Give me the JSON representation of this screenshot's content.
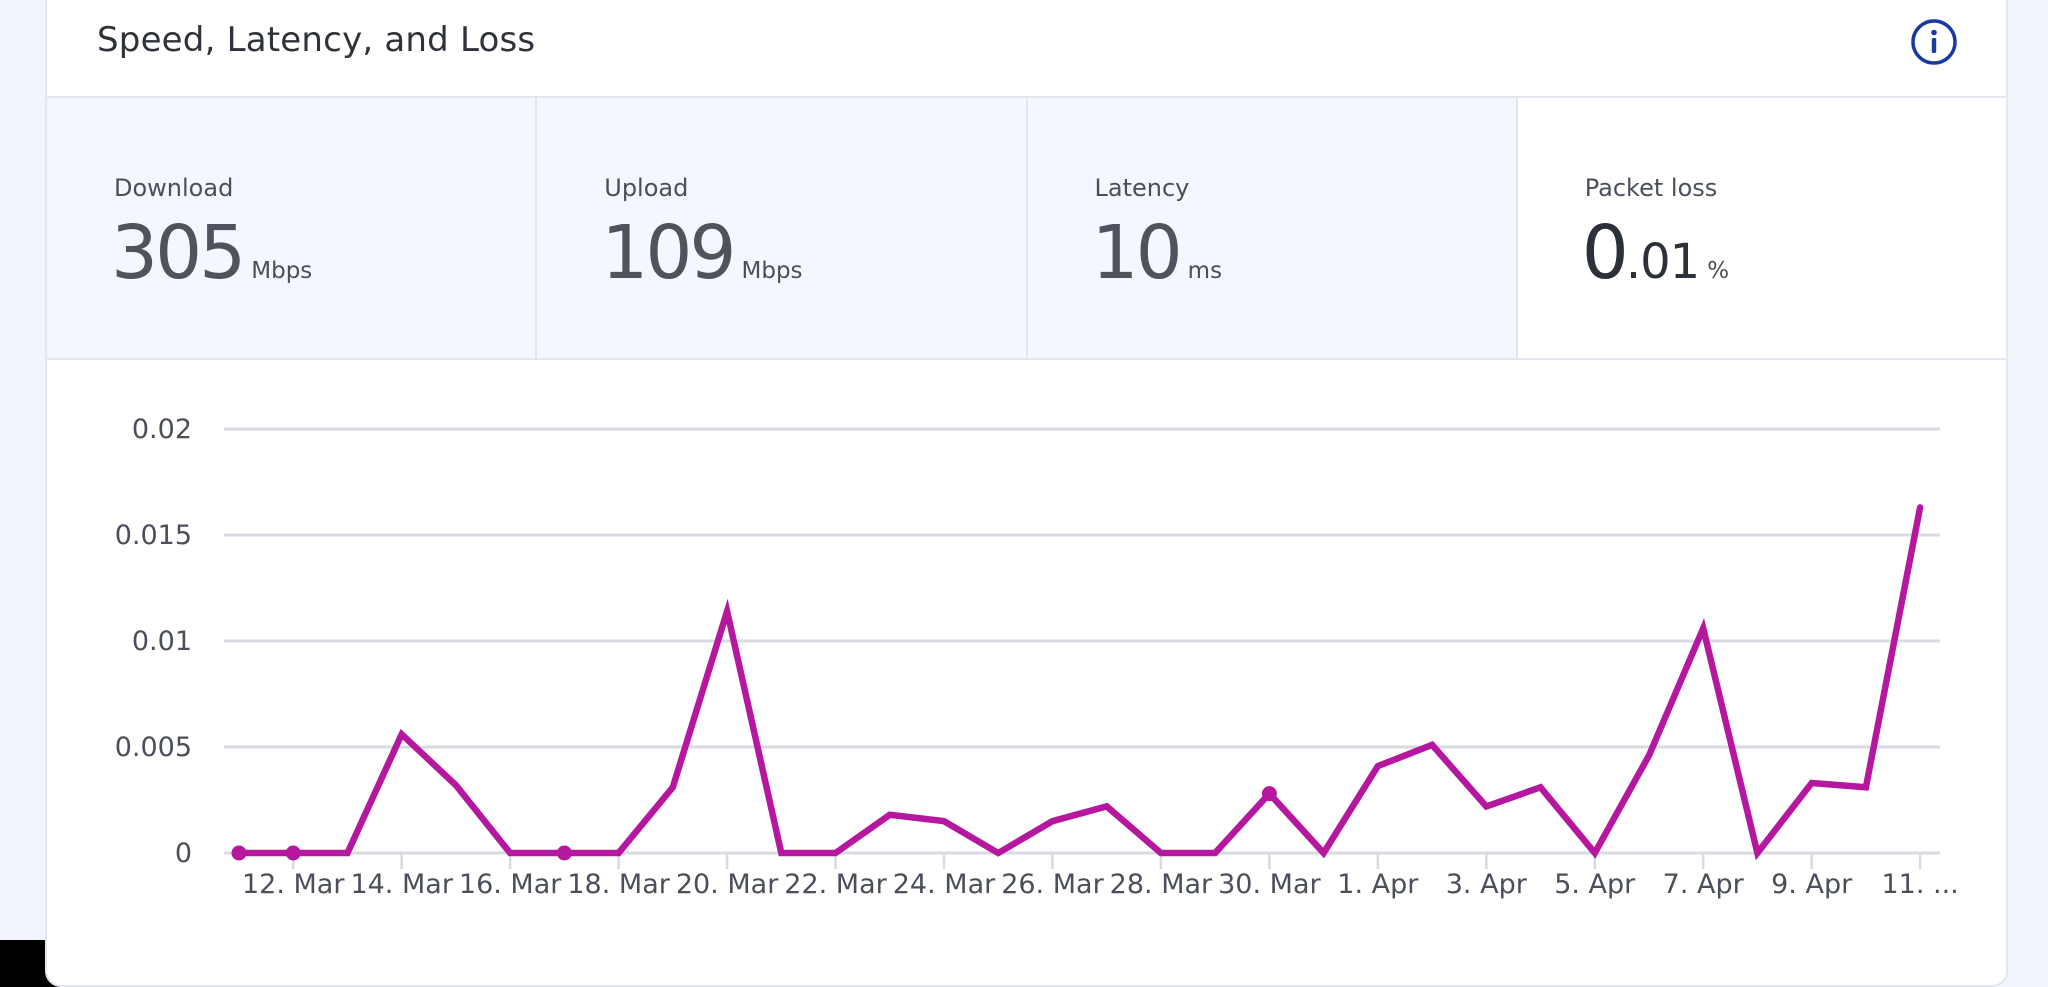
{
  "card": {
    "title": "Speed, Latency, and Loss",
    "info_icon": "info-circle-icon"
  },
  "metrics": [
    {
      "label": "Download",
      "value": "305",
      "decimal": "",
      "unit": "Mbps",
      "active": false
    },
    {
      "label": "Upload",
      "value": "109",
      "decimal": "",
      "unit": "Mbps",
      "active": false
    },
    {
      "label": "Latency",
      "value": "10",
      "decimal": "",
      "unit": "ms",
      "active": false
    },
    {
      "label": "Packet loss",
      "value": "0",
      "decimal": ".01",
      "unit": "%",
      "active": true
    }
  ],
  "colors": {
    "series": "#b5179e",
    "grid": "#d9dae3",
    "info": "#1a3aa3"
  },
  "chart_data": {
    "type": "line",
    "title": "",
    "xlabel": "",
    "ylabel": "",
    "ylim": [
      0,
      0.02
    ],
    "y_ticks": [
      "0",
      "0.005",
      "0.01",
      "0.015",
      "0.02"
    ],
    "y_tick_values": [
      0,
      0.005,
      0.01,
      0.015,
      0.02
    ],
    "x_tick_labels": [
      "12. Mar",
      "14. Mar",
      "16. Mar",
      "18. Mar",
      "20. Mar",
      "22. Mar",
      "24. Mar",
      "26. Mar",
      "28. Mar",
      "30. Mar",
      "1. Apr",
      "3. Apr",
      "5. Apr",
      "7. Apr",
      "9. Apr",
      "11. ..."
    ],
    "x": [
      "11. Mar",
      "12. Mar",
      "13. Mar",
      "14. Mar",
      "15. Mar",
      "16. Mar",
      "17. Mar",
      "18. Mar",
      "19. Mar",
      "20. Mar",
      "21. Mar",
      "22. Mar",
      "23. Mar",
      "24. Mar",
      "25. Mar",
      "26. Mar",
      "27. Mar",
      "28. Mar",
      "29. Mar",
      "30. Mar",
      "31. Mar",
      "1. Apr",
      "2. Apr",
      "3. Apr",
      "4. Apr",
      "5. Apr",
      "6. Apr",
      "7. Apr",
      "8. Apr",
      "9. Apr",
      "10. Apr",
      "11. Apr"
    ],
    "series": [
      {
        "values": [
          0,
          0,
          0,
          0.0056,
          0.0032,
          0,
          0,
          0,
          0.0031,
          0.0114,
          0,
          0,
          0.0018,
          0.0015,
          0,
          0.0015,
          0.0022,
          0,
          0,
          0.0028,
          0,
          0.0041,
          0.0051,
          0.0022,
          0.0031,
          0,
          0.0046,
          0.0106,
          0,
          0.0033,
          0.0031,
          0.0163
        ],
        "markers": [
          0,
          1,
          6,
          19
        ]
      }
    ],
    "grid": true,
    "legend": "none"
  }
}
